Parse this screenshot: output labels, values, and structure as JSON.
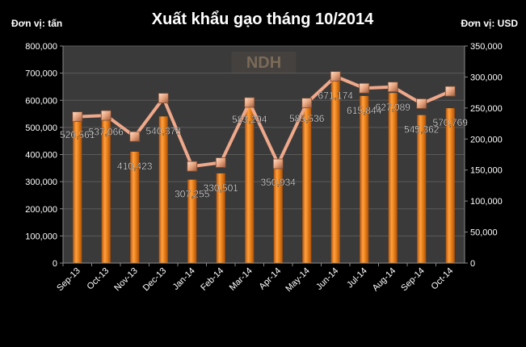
{
  "chart_data": {
    "type": "bar",
    "title": "Xuất khẩu gạo tháng 10/2014",
    "left_unit_label": "Đơn vị: tấn",
    "right_unit_label": "Đơn vị: USD",
    "watermark": "NDH",
    "categories": [
      "Sep-13",
      "Oct-13",
      "Nov-13",
      "Dec-13",
      "Jan-14",
      "Feb-14",
      "Mar-14",
      "Apr-14",
      "May-14",
      "Jun-14",
      "Jul-14",
      "Aug-14",
      "Sep-14",
      "Oct-14"
    ],
    "series": [
      {
        "type": "bar",
        "axis": "left",
        "color": "#E8780F",
        "values": [
          526561,
          537066,
          410423,
          540378,
          307255,
          330501,
          583294,
          350934,
          585536,
          671174,
          615844,
          627089,
          545362,
          570769
        ],
        "labels": [
          "526,561",
          "537,066",
          "410,423",
          "540,378",
          "307,255",
          "330,501",
          "583,294",
          "350,934",
          "585,536",
          "671,174",
          "615,844",
          "627,089",
          "545,362",
          "570,769"
        ]
      },
      {
        "type": "line",
        "axis": "right",
        "color": "#F0A88A",
        "values": [
          236000,
          238000,
          204000,
          266000,
          156000,
          162000,
          259000,
          160000,
          258000,
          301000,
          282000,
          284000,
          257000,
          277000
        ]
      }
    ],
    "left_axis": {
      "ylim": [
        0,
        800000
      ],
      "ticks": [
        "0",
        "100,000",
        "200,000",
        "300,000",
        "400,000",
        "500,000",
        "600,000",
        "700,000",
        "800,000"
      ]
    },
    "right_axis": {
      "ylim": [
        0,
        350000
      ],
      "ticks": [
        "0",
        "50,000",
        "100,000",
        "150,000",
        "200,000",
        "250,000",
        "300,000",
        "350,000"
      ]
    },
    "grid": true,
    "colors": {
      "background": "#000000",
      "plot_background": "#3a3a3a",
      "grid": "#5a5a5a",
      "text": "#ffffff",
      "bar": "#E8780F",
      "line": "#F0A88A"
    }
  }
}
